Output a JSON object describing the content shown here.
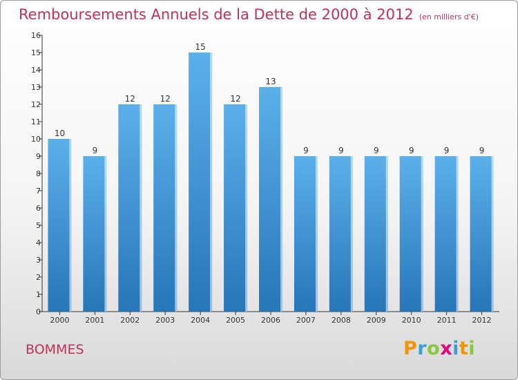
{
  "title": "Remboursements Annuels de la Dette de 2000 à 2012",
  "unit_label": "(en milliers d'€)",
  "city": "BOMMES",
  "logo": [
    "P",
    "r",
    "o",
    "x",
    "i",
    "t",
    "i"
  ],
  "colors": {
    "bar": "#3f96d8",
    "bar_light": "#5bb0ea",
    "bar_dark": "#2776b8",
    "title": "#c0305a"
  },
  "chart_data": {
    "type": "bar",
    "title": "Remboursements Annuels de la Dette de 2000 à 2012",
    "categories": [
      "2000",
      "2001",
      "2002",
      "2003",
      "2004",
      "2005",
      "2006",
      "2007",
      "2008",
      "2009",
      "2010",
      "2011",
      "2012"
    ],
    "values": [
      10,
      9,
      12,
      12,
      15,
      12,
      13,
      9,
      9,
      9,
      9,
      9,
      9
    ],
    "ylim": [
      0,
      16
    ],
    "yticks": [
      0,
      1,
      2,
      3,
      4,
      5,
      6,
      7,
      8,
      9,
      10,
      11,
      12,
      13,
      14,
      15,
      16
    ],
    "grid": false,
    "data_labels": true
  }
}
